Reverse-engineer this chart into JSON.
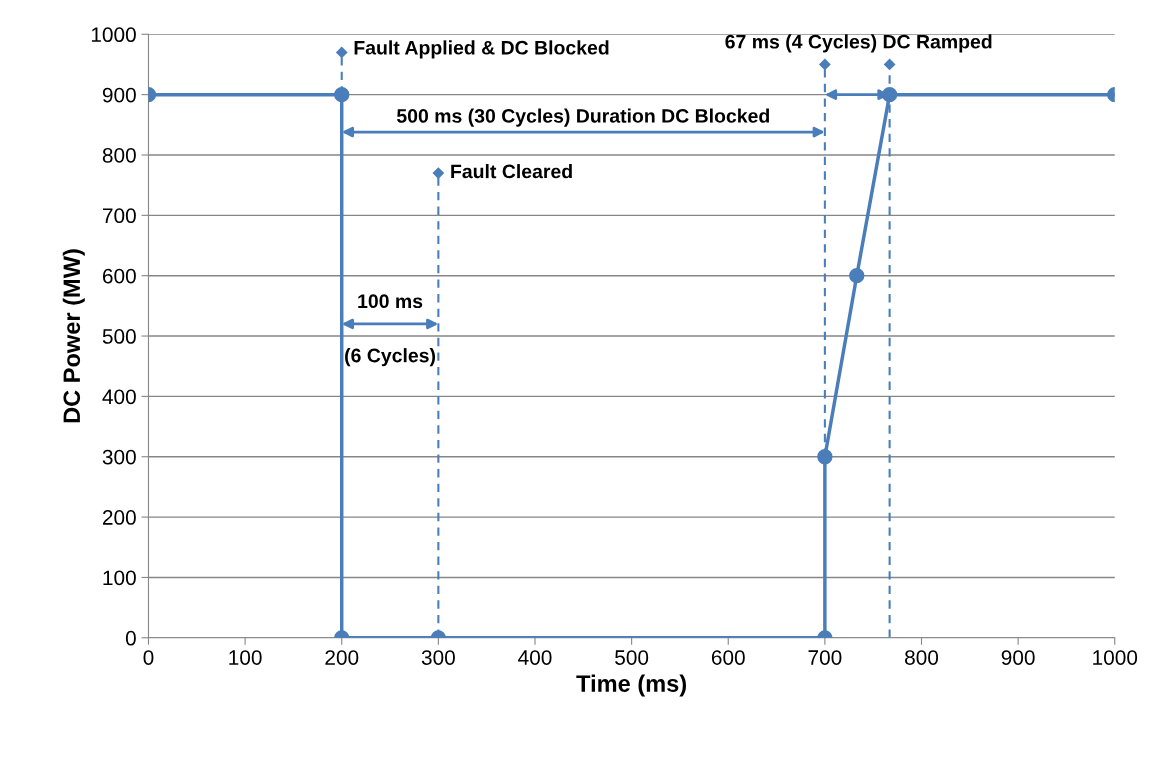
{
  "chart_data": {
    "type": "line",
    "xlabel": "Time (ms)",
    "ylabel": "DC Power (MW)",
    "xlim": [
      0,
      1000
    ],
    "xticks": [
      0,
      100,
      200,
      300,
      400,
      500,
      600,
      700,
      800,
      900,
      1000
    ],
    "ylim": [
      0,
      1000
    ],
    "yticks": [
      0,
      100,
      200,
      300,
      400,
      500,
      600,
      700,
      800,
      900,
      1000
    ],
    "grid": "y",
    "legend": false,
    "series": [
      {
        "color": "#4a7ebb",
        "marker": "circle",
        "line_style": "solid",
        "x": [
          0,
          200,
          200,
          300,
          700,
          700,
          733,
          767,
          1000
        ],
        "values": [
          900,
          900,
          0,
          0,
          0,
          300,
          600,
          900,
          900
        ]
      },
      {
        "type": "line",
        "color": "#4a7ebb",
        "marker": "diamond",
        "line_style": "dashed",
        "x": [
          200,
          200
        ],
        "values": [
          900,
          970
        ]
      },
      {
        "type": "line",
        "color": "#4a7ebb",
        "marker": "diamond",
        "line_style": "dashed",
        "x": [
          300,
          300
        ],
        "values": [
          0,
          770
        ]
      },
      {
        "type": "line",
        "color": "#4a7ebb",
        "marker": "diamond",
        "line_style": "dashed",
        "x": [
          700,
          700
        ],
        "values": [
          300,
          950
        ]
      },
      {
        "type": "line",
        "color": "#4a7ebb",
        "marker": "diamond",
        "line_style": "dashed",
        "x": [
          767,
          767
        ],
        "values": [
          0,
          950
        ]
      }
    ],
    "annotations": [
      "Fault Applied & DC Blocked",
      "500 ms (30 Cycles) Duration DC Blocked",
      "Fault Cleared",
      "100 ms",
      "(6 Cycles)",
      "67 ms (4 Cycles) DC Ramped"
    ]
  }
}
